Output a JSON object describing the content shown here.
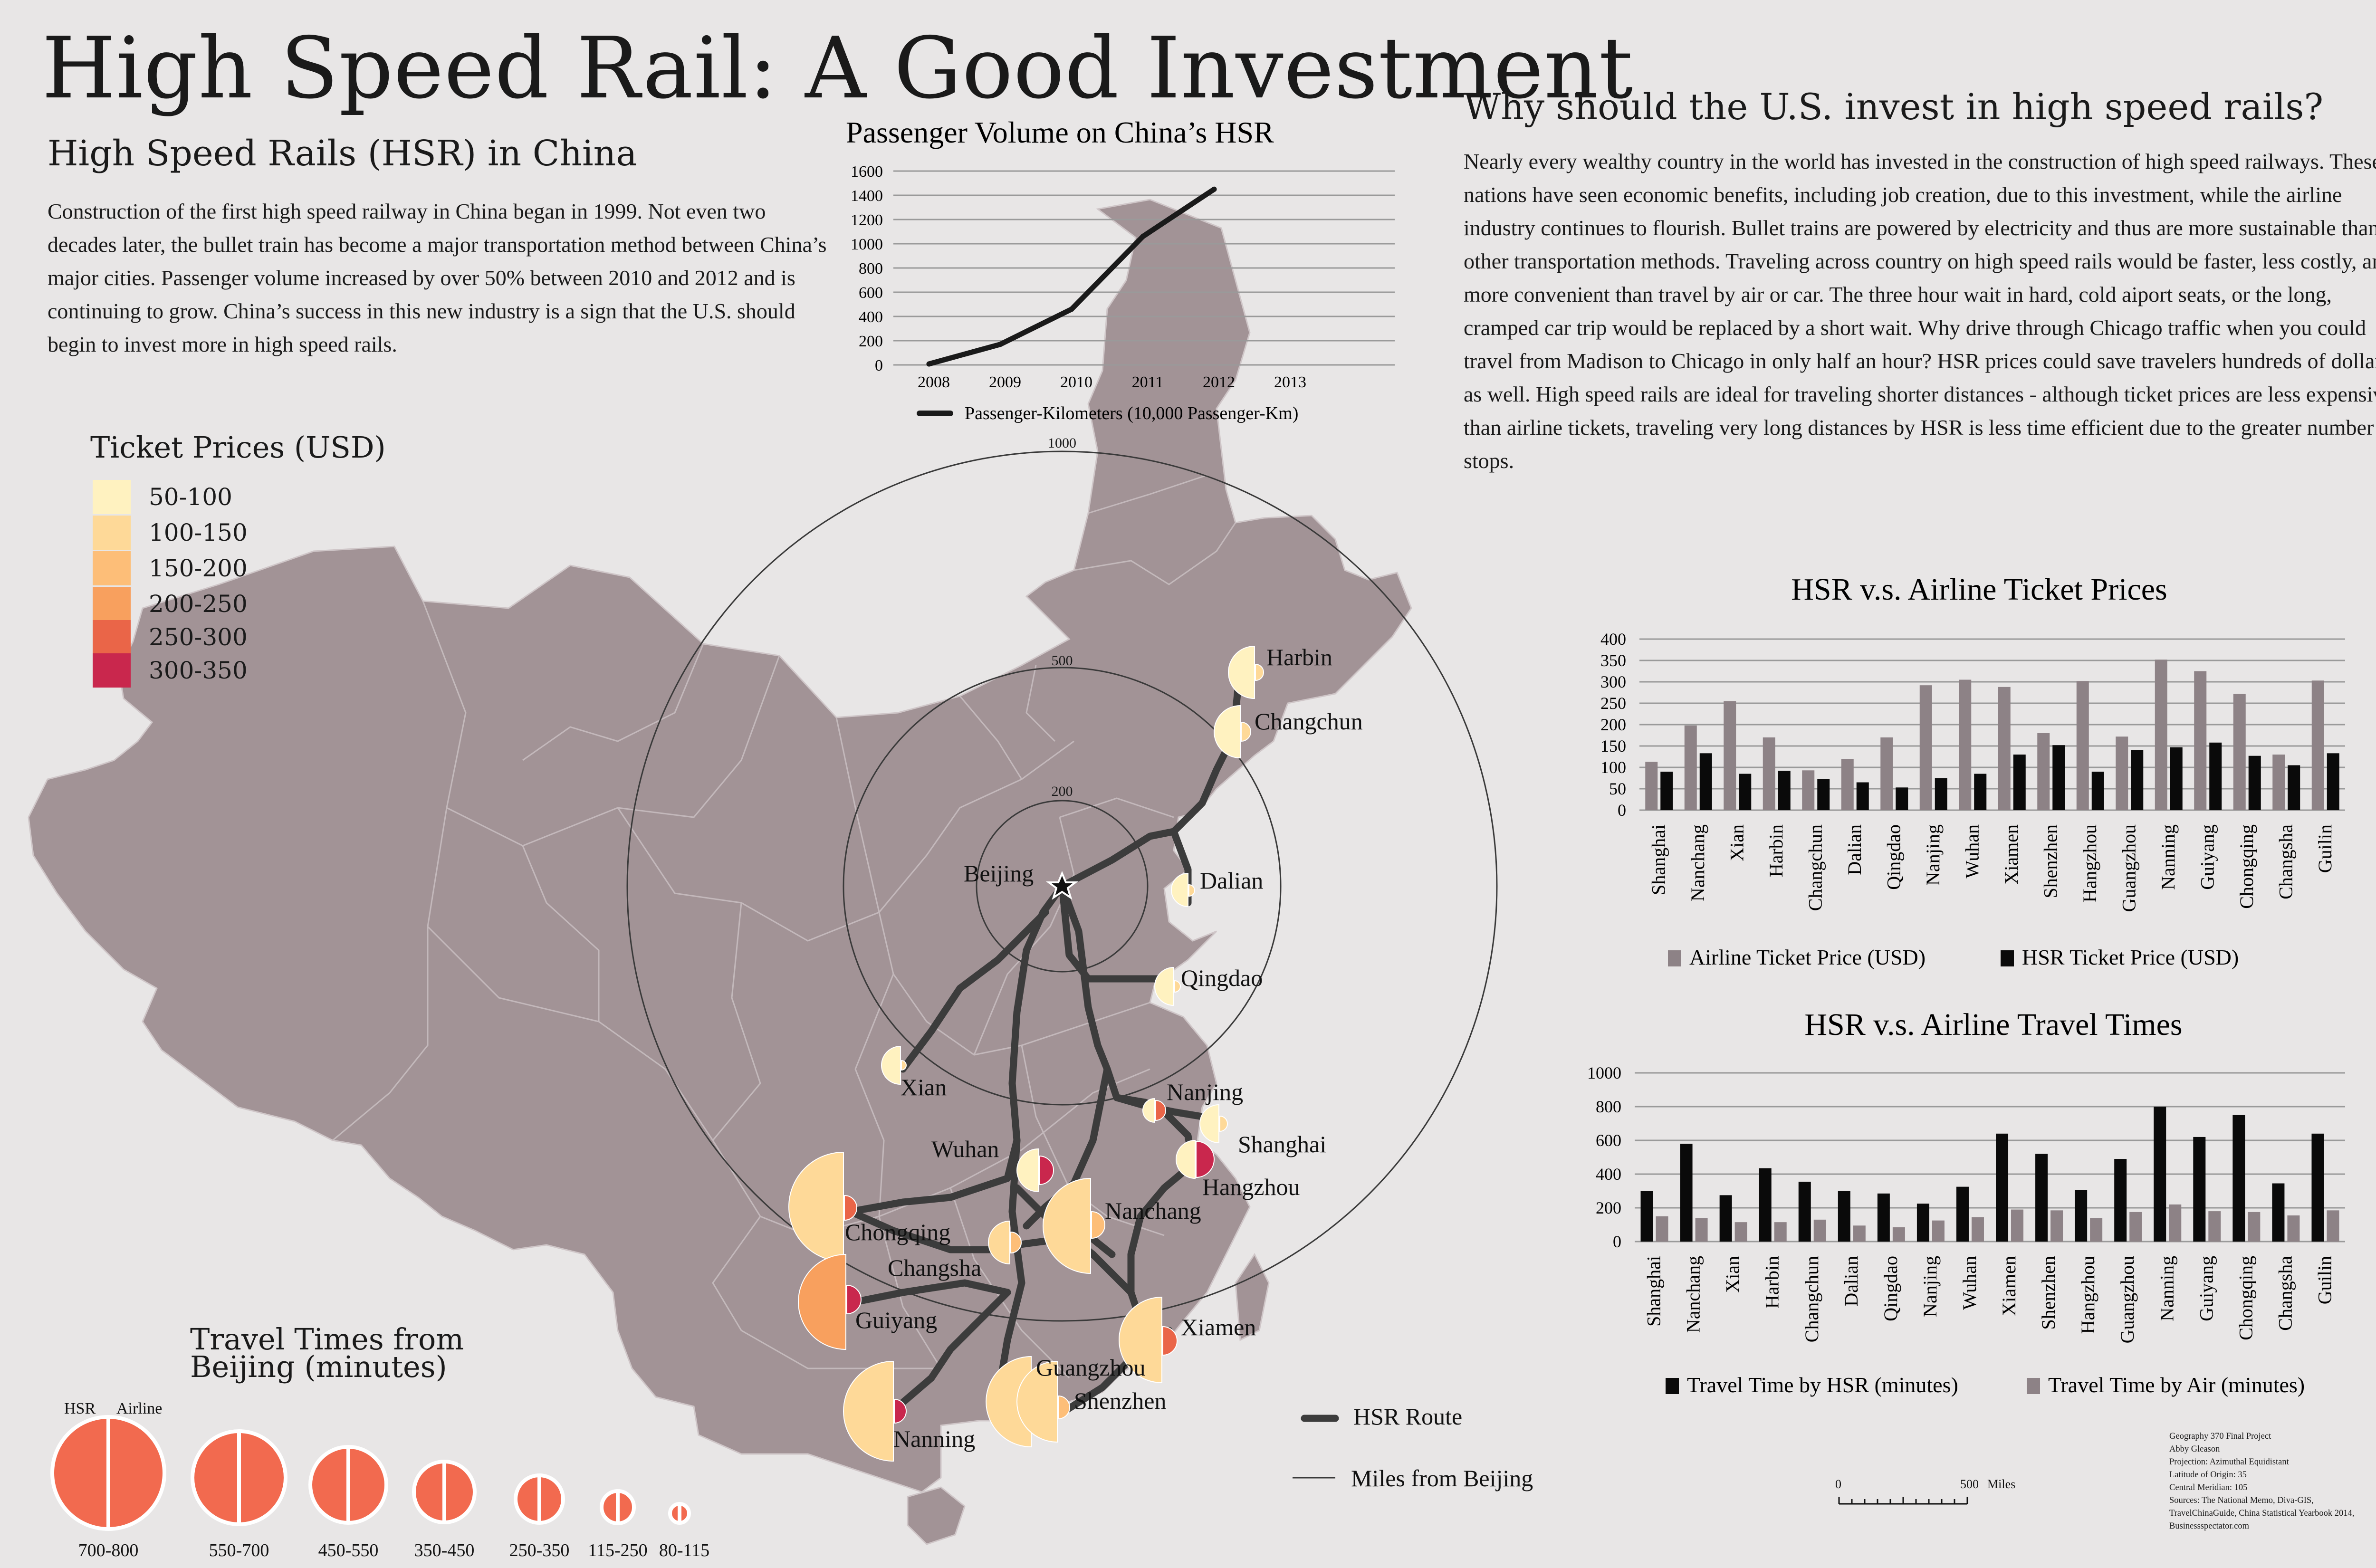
{
  "title": "High Speed Rail: A Good Investment",
  "china_section": {
    "heading": "High Speed Rails (HSR) in China",
    "body": "Construction of the first high speed railway in China began in 1999.  Not even two decades later, the bullet train has become a major transportation method between China’s major cities.  Passenger volume increased by over 50% between 2010 and 2012 and is continuing to grow.  China’s success in  this new industry is a sign that the U.S. should begin to invest more in high speed rails."
  },
  "why_section": {
    "heading": "Why should the U.S. invest in high speed rails?",
    "body": "Nearly every wealthy country in the world has invested in the construction of high speed railways.  These nations have seen economic benefits, including job creation, due to this investment, while the airline industry continues to flourish.  Bullet trains are powered by electricity and thus are more sustainable than other transportation methods.  Traveling across country on high speed rails would be faster, less costly, and more convenient than travel by air or car.   The three hour wait in hard, cold aiport seats, or the long, cramped car trip would be replaced by a short wait.  Why drive through Chicago traffic when you could travel from Madison to Chicago in only half an hour?  HSR prices could save travelers hundreds of dollars as well.  High speed rails are ideal for traveling shorter distances - although ticket prices are less expensive than airline tickets, traveling very long distances by HSR is less time efficient due to the greater number of stops."
  },
  "ticket_legend": {
    "title": "Ticket Prices (USD)",
    "items": [
      {
        "label": "50-100",
        "color": "#fff2c0"
      },
      {
        "label": "100-150",
        "color": "#fed998"
      },
      {
        "label": "150-200",
        "color": "#fdbe78"
      },
      {
        "label": "200-250",
        "color": "#f8a05e"
      },
      {
        "label": "250-300",
        "color": "#ea6548"
      },
      {
        "label": "300-350",
        "color": "#c9274d"
      }
    ]
  },
  "travel_legend": {
    "title_line1": "Travel Times from",
    "title_line2": "Beijing (minutes)",
    "hsr_label": "HSR",
    "airline_label": "Airline",
    "classes": [
      "700-800",
      "550-700",
      "450-550",
      "350-450",
      "250-350",
      "115-250",
      "80-115"
    ],
    "color": "#f26a4f"
  },
  "map": {
    "rings": [
      "1000",
      "500",
      "200"
    ],
    "capital": "Beijing",
    "cities": [
      "Harbin",
      "Changchun",
      "Dalian",
      "Qingdao",
      "Xian",
      "Nanjing",
      "Shanghai",
      "Hangzhou",
      "Wuhan",
      "Nanchang",
      "Chongqing",
      "Changsha",
      "Guiyang",
      "Xiamen",
      "Guangzhou",
      "Shenzhen",
      "Nanning"
    ],
    "legend_route": "HSR Route",
    "legend_rings": "Miles from Beijing",
    "country_color": "#a29396"
  },
  "scale_bar": {
    "start": "0",
    "end": "500",
    "unit": "Miles"
  },
  "credits": [
    "Geography 370 Final Project",
    "Abby Gleason",
    "Projection: Azimuthal Equidistant",
    "Latitude of Origin: 35",
    "Central Meridian: 105",
    "Sources: The National Memo, Diva-GIS,",
    "TravelChinaGuide, China Statistical Yearbook 2014,",
    "Businessspectator.com"
  ],
  "chart_data": [
    {
      "type": "line",
      "title": "Passenger Volume on China’s HSR",
      "categories": [
        "2008",
        "2009",
        "2010",
        "2011",
        "2012",
        "2013"
      ],
      "series": [
        {
          "name": "Passenger-Kilometers (10,000 Passenger-Km)",
          "values": [
            8,
            170,
            460,
            1060,
            1450,
            null
          ]
        }
      ],
      "ylim": [
        0,
        1600
      ],
      "yticks": [
        "0",
        "200",
        "400",
        "600",
        "800",
        "1000",
        "1200",
        "1400",
        "1600"
      ],
      "legend": "Passenger-Kilometers (10,000 Passenger-Km)",
      "color": "#1a1a1a"
    },
    {
      "type": "bar",
      "title": "HSR v.s. Airline Ticket Prices",
      "categories": [
        "Shanghai",
        "Nanchang",
        "Xian",
        "Harbin",
        "Changchun",
        "Dalian",
        "Qingdao",
        "Nanjing",
        "Wuhan",
        "Xiamen",
        "Shenzhen",
        "Hangzhou",
        "Guangzhou",
        "Nanning",
        "Guiyang",
        "Chongqing",
        "Changsha",
        "Guilin"
      ],
      "series": [
        {
          "name": "Airline Ticket Price (USD)",
          "color": "#8d8286",
          "values": [
            113,
            198,
            255,
            170,
            93,
            120,
            170,
            292,
            305,
            288,
            180,
            302,
            172,
            352,
            325,
            272,
            130,
            303
          ]
        },
        {
          "name": "HSR Ticket Price (USD)",
          "color": "#0a0a0a",
          "values": [
            90,
            133,
            85,
            92,
            73,
            65,
            53,
            75,
            85,
            130,
            152,
            90,
            140,
            147,
            158,
            127,
            105,
            133
          ]
        }
      ],
      "ylim": [
        0,
        400
      ],
      "yticks": [
        "0",
        "50",
        "100",
        "150",
        "200",
        "250",
        "300",
        "350",
        "400"
      ]
    },
    {
      "type": "bar",
      "title": "HSR v.s. Airline Travel Times",
      "categories": [
        "Shanghai",
        "Nanchang",
        "Xian",
        "Harbin",
        "Changchun",
        "Dalian",
        "Qingdao",
        "Nanjing",
        "Wuhan",
        "Xiamen",
        "Shenzhen",
        "Hangzhou",
        "Guangzhou",
        "Nanning",
        "Guiyang",
        "Chongqing",
        "Changsha",
        "Guilin"
      ],
      "series": [
        {
          "name": "Travel Time by HSR (minutes)",
          "color": "#0a0a0a",
          "values": [
            300,
            580,
            275,
            435,
            355,
            300,
            285,
            225,
            325,
            640,
            520,
            305,
            490,
            800,
            620,
            750,
            345,
            640
          ]
        },
        {
          "name": "Travel Time by Air (minutes)",
          "color": "#8d8286",
          "values": [
            150,
            140,
            115,
            115,
            130,
            95,
            85,
            125,
            145,
            190,
            185,
            140,
            175,
            220,
            180,
            175,
            155,
            185
          ]
        }
      ],
      "ylim": [
        0,
        1000
      ],
      "yticks": [
        "0",
        "200",
        "400",
        "600",
        "800",
        "1000"
      ]
    }
  ]
}
